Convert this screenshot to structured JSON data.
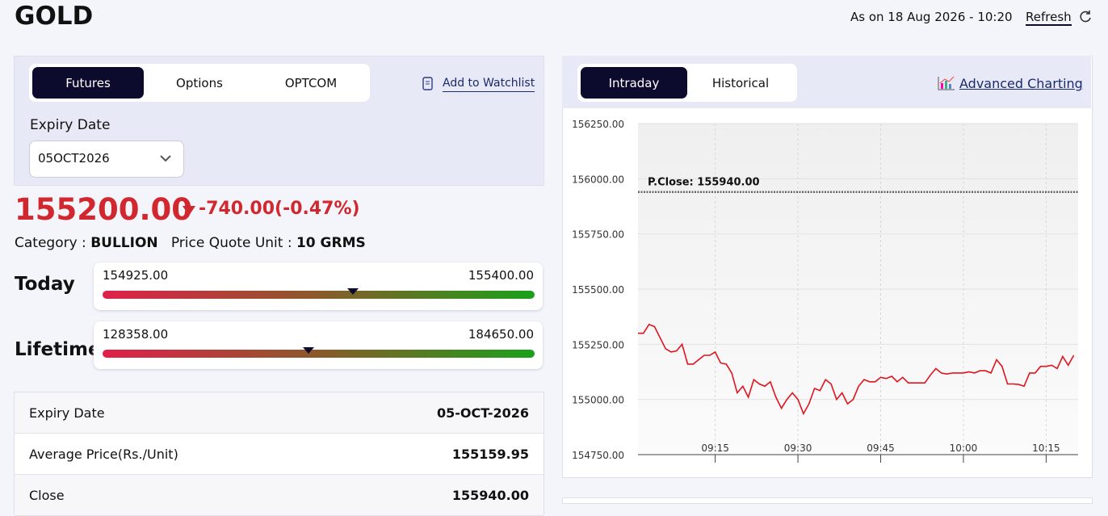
{
  "header": {
    "title": "GOLD",
    "as_of": "As on 18 Aug 2026 - 10:20",
    "refresh": "Refresh"
  },
  "left_panel": {
    "tabs": [
      "Futures",
      "Options",
      "OPTCOM"
    ],
    "watchlist": "Add to Watchlist",
    "expiry_label": "Expiry Date",
    "expiry_value": "05OCT2026"
  },
  "quote": {
    "price": "155200.00",
    "change": "-740.00(-0.47%)",
    "category_label": "Category :",
    "category": "BULLION",
    "unit_label": "Price Quote Unit :",
    "unit": "10 GRMS"
  },
  "ranges": [
    {
      "label": "Today",
      "low": "154925.00",
      "high": "155400.00"
    },
    {
      "label": "Lifetime",
      "low": "128358.00",
      "high": "184650.00"
    }
  ],
  "table": {
    "rows": [
      [
        "Expiry Date",
        "05-OCT-2026"
      ],
      [
        "Average Price(Rs./Unit)",
        "155159.95"
      ],
      [
        "Close",
        "155940.00"
      ]
    ]
  },
  "right_panel": {
    "tabs": [
      "Intraday",
      "Historical"
    ],
    "advanced": "Advanced Charting"
  },
  "chart_data": {
    "type": "line",
    "color": "#e0141e",
    "x": [
      "09:01",
      "09:02",
      "09:03",
      "09:04",
      "09:05",
      "09:06",
      "09:07",
      "09:08",
      "09:09",
      "09:10",
      "09:11",
      "09:12",
      "09:13",
      "09:14",
      "09:15",
      "09:16",
      "09:17",
      "09:18",
      "09:19",
      "09:20",
      "09:21",
      "09:22",
      "09:23",
      "09:24",
      "09:25",
      "09:26",
      "09:27",
      "09:28",
      "09:29",
      "09:30",
      "09:31",
      "09:32",
      "09:33",
      "09:34",
      "09:35",
      "09:36",
      "09:37",
      "09:38",
      "09:39",
      "09:40",
      "09:41",
      "09:42",
      "09:43",
      "09:44",
      "09:45",
      "09:46",
      "09:47",
      "09:48",
      "09:49",
      "09:50",
      "09:51",
      "09:52",
      "09:53",
      "09:54",
      "09:55",
      "09:56",
      "09:57",
      "09:58",
      "09:59",
      "10:00",
      "10:01",
      "10:02",
      "10:03",
      "10:04",
      "10:05",
      "10:06",
      "10:07",
      "10:08",
      "10:09",
      "10:10",
      "10:11",
      "10:12",
      "10:13",
      "10:14",
      "10:15",
      "10:16",
      "10:17",
      "10:18",
      "10:19",
      "10:20"
    ],
    "values": [
      155300,
      155300,
      155340,
      155330,
      155280,
      155230,
      155215,
      155220,
      155250,
      155160,
      155160,
      155180,
      155200,
      155200,
      155215,
      155165,
      155160,
      155120,
      155030,
      155060,
      155010,
      155090,
      155070,
      155060,
      155080,
      155010,
      154960,
      155000,
      155030,
      155000,
      154935,
      154980,
      155050,
      155040,
      155090,
      155070,
      155000,
      155030,
      154980,
      155000,
      155060,
      155090,
      155080,
      155080,
      155100,
      155095,
      155105,
      155080,
      155100,
      155075,
      155075,
      155075,
      155075,
      155110,
      155140,
      155120,
      155115,
      155120,
      155120,
      155120,
      155125,
      155120,
      155130,
      155130,
      155120,
      155180,
      155150,
      155070,
      155070,
      155068,
      155060,
      155120,
      155120,
      155150,
      155150,
      155155,
      155140,
      155195,
      155155,
      155200
    ],
    "xticks": [
      "09:15",
      "09:30",
      "09:45",
      "10:00",
      "10:15"
    ],
    "ylim": [
      154750,
      156250
    ],
    "yticks": [
      {
        "value": 154750,
        "label": "154750.00"
      },
      {
        "value": 155000,
        "label": "155000.00"
      },
      {
        "value": 155250,
        "label": "155250.00"
      },
      {
        "value": 155500,
        "label": "155500.00"
      },
      {
        "value": 155750,
        "label": "155750.00"
      },
      {
        "value": 156000,
        "label": "156000.00"
      },
      {
        "value": 156250,
        "label": "156250.00"
      }
    ],
    "reference": {
      "value": 155940,
      "label": "P.Close: 155940.00"
    },
    "grid": true
  }
}
